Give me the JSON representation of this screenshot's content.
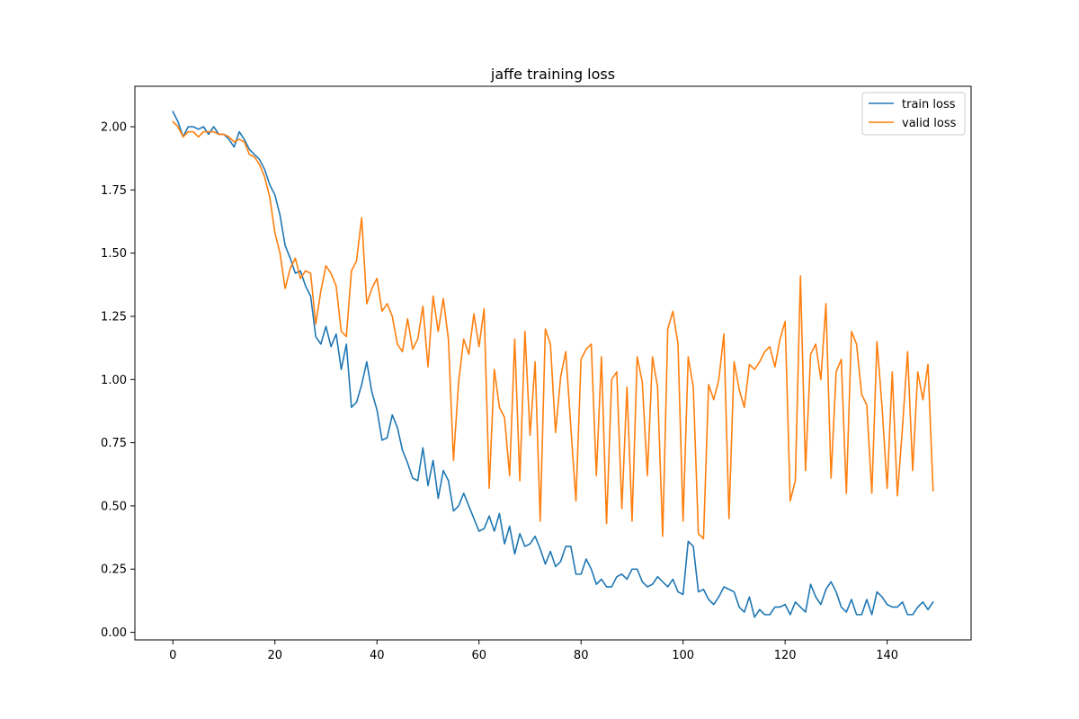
{
  "chart_data": {
    "type": "line",
    "title": "jaffe training loss",
    "xlabel": "",
    "ylabel": "",
    "xlim": [
      -7.45,
      156.45
    ],
    "ylim": [
      -0.03,
      2.16
    ],
    "xticks": [
      0,
      20,
      40,
      60,
      80,
      100,
      120,
      140
    ],
    "yticks": [
      0.0,
      0.25,
      0.5,
      0.75,
      1.0,
      1.25,
      1.5,
      1.75,
      2.0
    ],
    "grid": false,
    "legend_position": "top-right",
    "series": [
      {
        "name": "train loss",
        "color": "#1f77b4",
        "values": [
          2.06,
          2.02,
          1.96,
          2.0,
          2.0,
          1.99,
          2.0,
          1.97,
          2.0,
          1.97,
          1.97,
          1.95,
          1.92,
          1.98,
          1.95,
          1.91,
          1.89,
          1.87,
          1.83,
          1.77,
          1.73,
          1.65,
          1.53,
          1.48,
          1.42,
          1.43,
          1.37,
          1.33,
          1.17,
          1.14,
          1.21,
          1.13,
          1.18,
          1.04,
          1.14,
          0.89,
          0.91,
          0.98,
          1.07,
          0.95,
          0.88,
          0.76,
          0.77,
          0.86,
          0.81,
          0.72,
          0.67,
          0.61,
          0.6,
          0.73,
          0.58,
          0.68,
          0.53,
          0.64,
          0.6,
          0.48,
          0.5,
          0.55,
          0.5,
          0.45,
          0.4,
          0.41,
          0.46,
          0.4,
          0.47,
          0.35,
          0.42,
          0.31,
          0.39,
          0.34,
          0.35,
          0.38,
          0.33,
          0.27,
          0.32,
          0.26,
          0.28,
          0.34,
          0.34,
          0.23,
          0.23,
          0.29,
          0.25,
          0.19,
          0.21,
          0.18,
          0.18,
          0.22,
          0.23,
          0.21,
          0.25,
          0.25,
          0.2,
          0.18,
          0.19,
          0.22,
          0.2,
          0.18,
          0.21,
          0.16,
          0.15,
          0.36,
          0.34,
          0.16,
          0.17,
          0.13,
          0.11,
          0.14,
          0.18,
          0.17,
          0.16,
          0.1,
          0.08,
          0.14,
          0.06,
          0.09,
          0.07,
          0.07,
          0.1,
          0.1,
          0.11,
          0.07,
          0.12,
          0.1,
          0.08,
          0.19,
          0.14,
          0.11,
          0.17,
          0.2,
          0.16,
          0.1,
          0.08,
          0.13,
          0.07,
          0.07,
          0.13,
          0.07,
          0.16,
          0.14,
          0.11,
          0.1,
          0.1,
          0.12,
          0.07,
          0.07,
          0.1,
          0.12,
          0.09,
          0.12
        ]
      },
      {
        "name": "valid loss",
        "color": "#ff7f0e",
        "values": [
          2.02,
          2.0,
          1.96,
          1.98,
          1.98,
          1.96,
          1.98,
          1.98,
          1.98,
          1.97,
          1.97,
          1.96,
          1.94,
          1.95,
          1.94,
          1.89,
          1.88,
          1.85,
          1.8,
          1.72,
          1.58,
          1.5,
          1.36,
          1.44,
          1.48,
          1.4,
          1.43,
          1.42,
          1.22,
          1.35,
          1.45,
          1.42,
          1.37,
          1.19,
          1.17,
          1.43,
          1.47,
          1.64,
          1.3,
          1.36,
          1.4,
          1.27,
          1.3,
          1.25,
          1.14,
          1.11,
          1.24,
          1.12,
          1.16,
          1.29,
          1.05,
          1.33,
          1.19,
          1.32,
          1.16,
          0.68,
          0.99,
          1.16,
          1.1,
          1.26,
          1.13,
          1.28,
          0.57,
          1.04,
          0.89,
          0.85,
          0.62,
          1.16,
          0.6,
          1.19,
          0.78,
          1.07,
          0.44,
          1.2,
          1.14,
          0.79,
          1.01,
          1.11,
          0.81,
          0.52,
          1.08,
          1.12,
          1.14,
          0.62,
          1.09,
          0.43,
          1.0,
          1.03,
          0.49,
          0.97,
          0.44,
          1.09,
          0.99,
          0.62,
          1.09,
          0.97,
          0.38,
          1.2,
          1.27,
          1.14,
          0.44,
          1.09,
          0.97,
          0.39,
          0.37,
          0.98,
          0.92,
          1.0,
          1.18,
          0.45,
          1.07,
          0.96,
          0.89,
          1.06,
          1.04,
          1.07,
          1.11,
          1.13,
          1.05,
          1.16,
          1.23,
          0.52,
          0.6,
          1.41,
          0.64,
          1.1,
          1.14,
          1.0,
          1.3,
          0.61,
          1.03,
          1.08,
          0.55,
          1.19,
          1.14,
          0.94,
          0.9,
          0.55,
          1.15,
          0.89,
          0.57,
          1.03,
          0.54,
          0.81,
          1.11,
          0.64,
          1.03,
          0.92,
          1.06,
          0.56
        ]
      }
    ]
  }
}
